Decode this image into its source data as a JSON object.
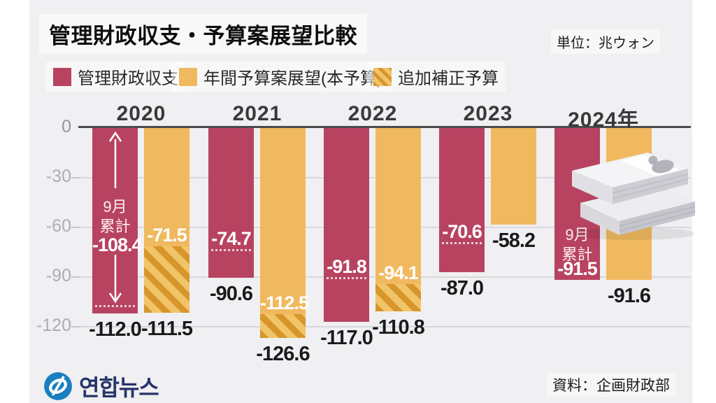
{
  "title": "管理財政収支・予算案展望比較",
  "unit_note": "単位：兆ウォン",
  "legend": {
    "items": [
      {
        "label": "管理財政収支",
        "swatch": "solid-red"
      },
      {
        "label": "年間予算案展望(本予算)",
        "swatch": "solid-orange"
      },
      {
        "label": "追加補正予算",
        "swatch": "hatched-orange"
      }
    ]
  },
  "footer": {
    "logo_text": "연합뉴스",
    "source": "資料：企画財政部"
  },
  "colors": {
    "balance_bar": "#b84361",
    "budget_bar": "#f0b95f",
    "hatch_dark": "#d6962c",
    "hatch_light": "#f2c468",
    "background_panel": "#f0eff1",
    "axis": "#4b4b4d",
    "grid": "#d8d7db",
    "tick_text": "#adacb2",
    "year_text": "#39393b",
    "value_text": "#1a1a1c",
    "logo_blue": "#1a7fc0",
    "logo_navy": "#263569"
  },
  "chart_data": {
    "type": "bar",
    "title": "管理財政収支・予算案展望比較",
    "unit": "兆ウォン",
    "y_ticks": [
      0,
      -30,
      -60,
      -90,
      -120
    ],
    "ylim": [
      -135,
      0
    ],
    "grid": true,
    "series_names": [
      "管理財政収支",
      "年間予算案展望(本予算)",
      "追加補正予算"
    ],
    "groups": [
      {
        "year_label": "2020",
        "balance": -112.0,
        "sept_cumulative": -108.4,
        "sept_note": "9月累計",
        "show_span_arrow": true,
        "budget_total": -111.5,
        "budget_main": -71.5,
        "supplementary": true
      },
      {
        "year_label": "2021",
        "balance": -90.6,
        "sept_cumulative": -74.7,
        "budget_total": -126.6,
        "budget_main": -112.5,
        "supplementary": true
      },
      {
        "year_label": "2022",
        "balance": -117.0,
        "sept_cumulative": -91.8,
        "budget_total": -110.8,
        "budget_main": -94.1,
        "supplementary": true
      },
      {
        "year_label": "2023",
        "balance": -87.0,
        "sept_cumulative": -70.6,
        "budget_total": -58.2,
        "budget_main": -58.2,
        "supplementary": false
      },
      {
        "year_label": "2024年",
        "balance": -91.5,
        "balance_is_sept_cumulative": true,
        "sept_note": "9月累計",
        "budget_total": -91.6,
        "budget_main": -91.6,
        "supplementary": false
      }
    ]
  }
}
